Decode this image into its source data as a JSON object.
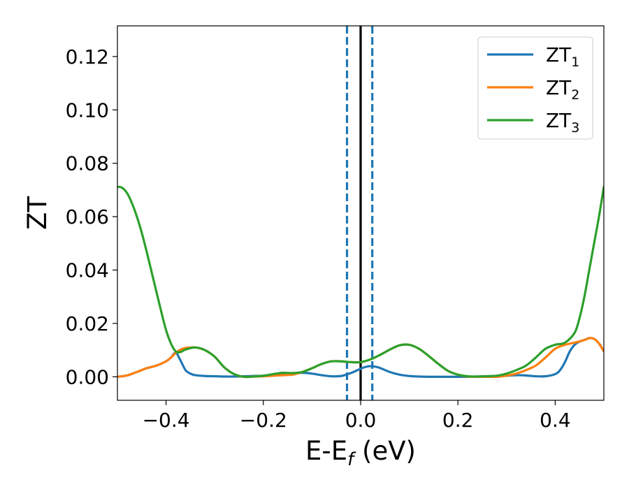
{
  "chart_data": {
    "type": "line",
    "xlabel_main": "E-E",
    "xlabel_sub": "f",
    "xlabel_unit": " (eV)",
    "ylabel": "ZT",
    "xlim": [
      -0.5,
      0.5
    ],
    "ylim": [
      -0.0088,
      0.1315
    ],
    "x_ticks": [
      -0.4,
      -0.2,
      0.0,
      0.2,
      0.4
    ],
    "x_tick_labels": [
      "−0.4",
      "−0.2",
      "0.0",
      "0.2",
      "0.4"
    ],
    "y_ticks": [
      0.0,
      0.02,
      0.04,
      0.06,
      0.08,
      0.1,
      0.12
    ],
    "y_tick_labels": [
      "0.00",
      "0.02",
      "0.04",
      "0.06",
      "0.08",
      "0.10",
      "0.12"
    ],
    "grid": false,
    "legend_position": "top-right",
    "vlines": [
      {
        "x": -0.028,
        "color": "#1f77b4",
        "style": "dashed"
      },
      {
        "x": 0.0,
        "color": "#000000",
        "style": "solid"
      },
      {
        "x": 0.024,
        "color": "#1f77b4",
        "style": "dashed"
      }
    ],
    "series": [
      {
        "name": "ZT",
        "name_sub": "1",
        "color": "#1f77b4",
        "x": [
          -0.5,
          -0.48,
          -0.46,
          -0.44,
          -0.42,
          -0.4,
          -0.39,
          -0.38,
          -0.37,
          -0.36,
          -0.35,
          -0.34,
          -0.32,
          -0.3,
          -0.28,
          -0.26,
          -0.24,
          -0.22,
          -0.2,
          -0.18,
          -0.16,
          -0.14,
          -0.12,
          -0.1,
          -0.08,
          -0.06,
          -0.04,
          -0.03,
          -0.02,
          -0.01,
          0.0,
          0.01,
          0.02,
          0.03,
          0.04,
          0.06,
          0.08,
          0.1,
          0.12,
          0.14,
          0.16,
          0.18,
          0.2,
          0.22,
          0.24,
          0.26,
          0.28,
          0.3,
          0.32,
          0.34,
          0.36,
          0.38,
          0.4,
          0.41,
          0.42,
          0.43,
          0.44,
          0.45,
          0.46,
          0.47,
          0.48,
          0.49,
          0.5
        ],
        "y": [
          0.0,
          0.0005,
          0.0018,
          0.0032,
          0.0042,
          0.0058,
          0.0072,
          0.009,
          0.006,
          0.0025,
          0.0012,
          0.0006,
          0.0003,
          0.0002,
          0.0001,
          0.0001,
          0.0002,
          0.0003,
          0.0004,
          0.0006,
          0.0008,
          0.0012,
          0.0015,
          0.0012,
          0.0006,
          0.0002,
          0.0003,
          0.0008,
          0.0014,
          0.0022,
          0.003,
          0.0037,
          0.004,
          0.0038,
          0.0033,
          0.0018,
          0.0008,
          0.0003,
          0.0001,
          0.0,
          0.0,
          0.0,
          0.0,
          0.0,
          0.0001,
          0.0002,
          0.0003,
          0.0004,
          0.0006,
          0.0005,
          0.0002,
          0.0002,
          0.001,
          0.0025,
          0.0055,
          0.0095,
          0.012,
          0.0132,
          0.0138,
          0.0145,
          0.0142,
          0.0125,
          0.0095
        ]
      },
      {
        "name": "ZT",
        "name_sub": "2",
        "color": "#ff7f0e",
        "x": [
          -0.5,
          -0.48,
          -0.46,
          -0.44,
          -0.42,
          -0.4,
          -0.39,
          -0.38,
          -0.37,
          -0.36,
          -0.34,
          -0.32,
          -0.3,
          -0.28,
          -0.26,
          -0.24,
          -0.22,
          -0.2,
          -0.18,
          -0.16,
          -0.14,
          -0.12,
          -0.1,
          -0.08,
          -0.06,
          -0.04,
          -0.02,
          0.0,
          0.02,
          0.04,
          0.06,
          0.08,
          0.1,
          0.12,
          0.14,
          0.16,
          0.18,
          0.2,
          0.22,
          0.24,
          0.26,
          0.28,
          0.3,
          0.32,
          0.34,
          0.36,
          0.38,
          0.4,
          0.42,
          0.44,
          0.46,
          0.47,
          0.48,
          0.49,
          0.5
        ],
        "y": [
          0.0,
          0.0005,
          0.0018,
          0.0032,
          0.0042,
          0.0058,
          0.0072,
          0.009,
          0.0102,
          0.0108,
          0.011,
          0.01,
          0.0075,
          0.0035,
          0.001,
          0.0,
          0.0001,
          0.0002,
          0.0004,
          0.0006,
          0.0008,
          0.0018,
          0.0032,
          0.0048,
          0.0058,
          0.0058,
          0.0055,
          0.0055,
          0.0065,
          0.0082,
          0.0102,
          0.0118,
          0.012,
          0.0105,
          0.0078,
          0.0048,
          0.0022,
          0.0008,
          0.0001,
          0.0,
          0.0,
          0.0,
          0.0004,
          0.0012,
          0.0025,
          0.0042,
          0.0072,
          0.0105,
          0.012,
          0.0128,
          0.0138,
          0.0145,
          0.0142,
          0.0125,
          0.0095
        ]
      },
      {
        "name": "ZT",
        "name_sub": "3",
        "color": "#2ca02c",
        "x": [
          -0.5,
          -0.49,
          -0.48,
          -0.47,
          -0.46,
          -0.45,
          -0.44,
          -0.43,
          -0.42,
          -0.41,
          -0.4,
          -0.39,
          -0.38,
          -0.37,
          -0.36,
          -0.34,
          -0.32,
          -0.3,
          -0.28,
          -0.26,
          -0.24,
          -0.22,
          -0.2,
          -0.18,
          -0.16,
          -0.14,
          -0.12,
          -0.1,
          -0.08,
          -0.06,
          -0.04,
          -0.02,
          0.0,
          0.02,
          0.04,
          0.06,
          0.08,
          0.1,
          0.12,
          0.14,
          0.16,
          0.18,
          0.2,
          0.22,
          0.24,
          0.26,
          0.28,
          0.3,
          0.32,
          0.34,
          0.36,
          0.38,
          0.4,
          0.42,
          0.44,
          0.45,
          0.46,
          0.47,
          0.48,
          0.49,
          0.5
        ],
        "y": [
          0.0712,
          0.0708,
          0.0688,
          0.065,
          0.06,
          0.054,
          0.047,
          0.0395,
          0.032,
          0.0245,
          0.0175,
          0.0125,
          0.0095,
          0.0093,
          0.0102,
          0.011,
          0.01,
          0.0075,
          0.0035,
          0.001,
          0.0,
          0.0001,
          0.0004,
          0.001,
          0.0015,
          0.0014,
          0.0018,
          0.0032,
          0.0048,
          0.0058,
          0.0058,
          0.0055,
          0.0055,
          0.0065,
          0.0082,
          0.0102,
          0.0118,
          0.012,
          0.0105,
          0.0078,
          0.0048,
          0.0022,
          0.0008,
          0.0002,
          0.0001,
          0.0002,
          0.0004,
          0.0012,
          0.0025,
          0.0042,
          0.0072,
          0.0105,
          0.012,
          0.0128,
          0.0165,
          0.022,
          0.03,
          0.04,
          0.05,
          0.06,
          0.0712
        ]
      }
    ]
  }
}
